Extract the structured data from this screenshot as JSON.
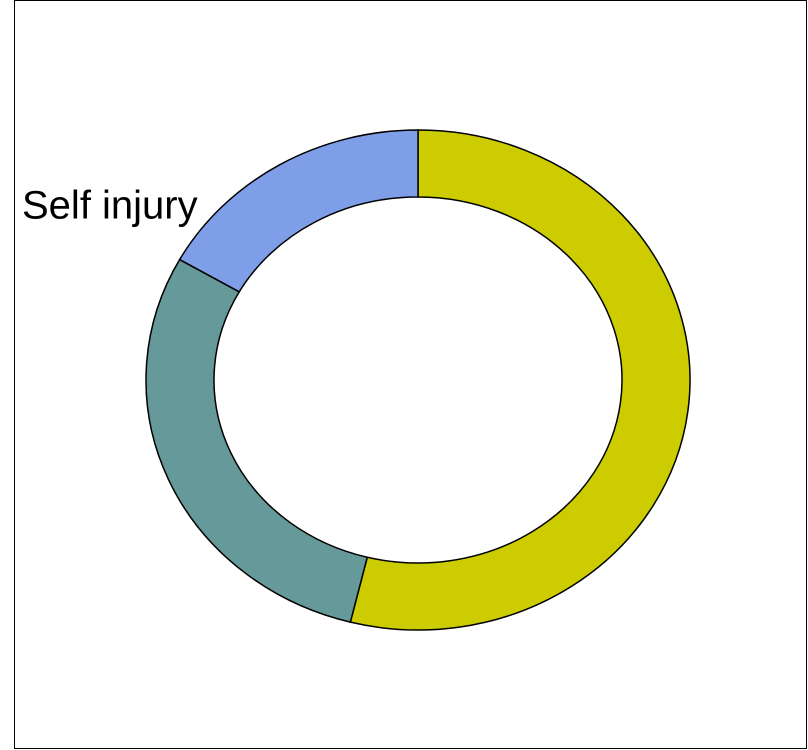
{
  "chart_data": {
    "type": "donut",
    "categories": [
      null,
      null,
      "Self injury"
    ],
    "values": [
      54,
      29,
      17
    ],
    "colors": [
      "#cccc00",
      "#669999",
      "#7f9ee8"
    ]
  }
}
